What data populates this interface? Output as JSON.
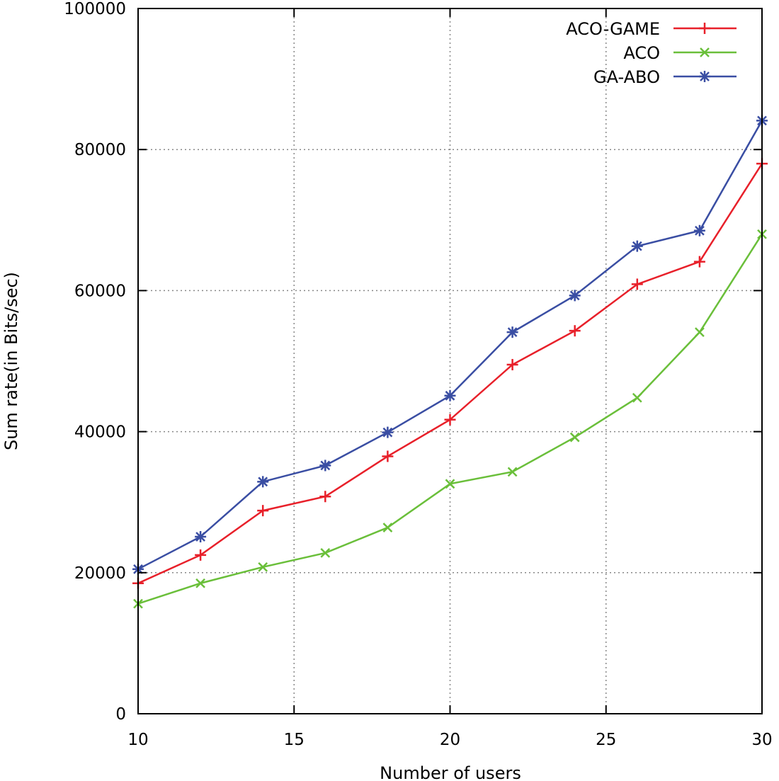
{
  "chart_data": {
    "type": "line",
    "title": "",
    "xlabel": "Number of users",
    "ylabel": "Sum rate(in Bits/sec)",
    "xlim": [
      10,
      30
    ],
    "ylim": [
      0,
      100000
    ],
    "xticks": [
      10,
      15,
      20,
      25,
      30
    ],
    "yticks": [
      0,
      20000,
      40000,
      60000,
      80000,
      100000
    ],
    "grid": true,
    "legend_position": "top-right",
    "x": [
      10,
      12,
      14,
      16,
      18,
      20,
      22,
      24,
      26,
      28,
      30
    ],
    "series": [
      {
        "name": "ACO-GAME",
        "color": "#e8202a",
        "marker": "plus",
        "values": [
          18500,
          22500,
          28800,
          30800,
          36500,
          41700,
          49500,
          54300,
          60900,
          64100,
          78000
        ]
      },
      {
        "name": "ACO",
        "color": "#6abf3a",
        "marker": "cross",
        "values": [
          15600,
          18500,
          20800,
          22800,
          26400,
          32600,
          34300,
          39200,
          44800,
          54100,
          68000
        ]
      },
      {
        "name": "GA-ABO",
        "color": "#3a4ea3",
        "marker": "star",
        "values": [
          20500,
          25100,
          32900,
          35200,
          39900,
          45100,
          54100,
          59300,
          66300,
          68500,
          84100
        ]
      }
    ]
  }
}
